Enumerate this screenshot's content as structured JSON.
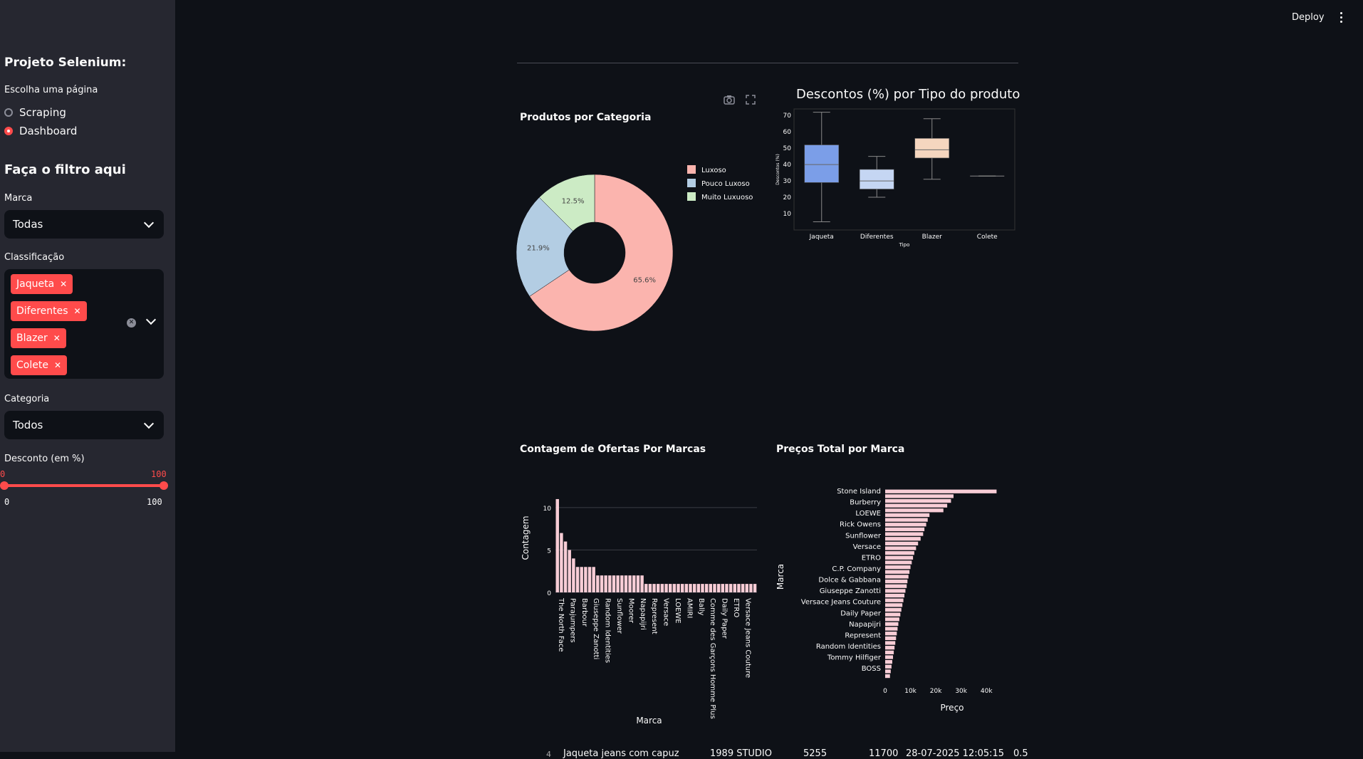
{
  "topbar": {
    "deploy_label": "Deploy"
  },
  "sidebar": {
    "title": "Projeto Selenium:",
    "page_label": "Escolha uma página",
    "pages": [
      {
        "label": "Scraping",
        "selected": false
      },
      {
        "label": "Dashboard",
        "selected": true
      }
    ],
    "filter_title": "Faça o filtro aqui",
    "marca": {
      "label": "Marca",
      "value": "Todas"
    },
    "classificacao": {
      "label": "Classificação",
      "tags": [
        "Jaqueta",
        "Diferentes",
        "Blazer",
        "Colete"
      ]
    },
    "categoria": {
      "label": "Categoria",
      "value": "Todos"
    },
    "desconto": {
      "label": "Desconto (em %)",
      "min_value": "0",
      "max_value": "100",
      "range_min": "0",
      "range_max": "100"
    }
  },
  "charts": {
    "pie_title": "Produtos por Categoria",
    "box_title": "Descontos (%) por Tipo do produto",
    "count_title": "Contagem de Ofertas Por Marcas",
    "price_title": "Preços Total por Marca"
  },
  "chart_data": [
    {
      "type": "pie",
      "title": "Produtos por Categoria",
      "hole": true,
      "slices": [
        {
          "label": "Luxoso",
          "value": 65.6,
          "text": "65.6%",
          "color": "#fbb4ae"
        },
        {
          "label": "Pouco Luxoso",
          "value": 21.9,
          "text": "21.9%",
          "color": "#b3cde3"
        },
        {
          "label": "Muito Luxuoso",
          "value": 12.5,
          "text": "12.5%",
          "color": "#ccebc5"
        }
      ],
      "legend_position": "top-right"
    },
    {
      "type": "box",
      "title": "Descontos (%) por Tipo do produto",
      "xlabel": "Tipo",
      "ylabel": "Descontos (%)",
      "yticks": [
        10,
        20,
        30,
        40,
        50,
        60,
        70
      ],
      "ylim": [
        0,
        74
      ],
      "boxes": [
        {
          "category": "Jaqueta",
          "min": 5,
          "q1": 29,
          "median": 40,
          "q3": 52,
          "max": 72,
          "color": "#7b9ee8"
        },
        {
          "category": "Diferentes",
          "min": 20,
          "q1": 25,
          "median": 30,
          "q3": 37,
          "max": 45,
          "color": "#c5d6f3"
        },
        {
          "category": "Blazer",
          "min": 31,
          "q1": 44,
          "median": 49,
          "q3": 56,
          "max": 68,
          "color": "#f5d6bf"
        },
        {
          "category": "Colete",
          "min": 33,
          "q1": 33,
          "median": 33,
          "q3": 33,
          "max": 33,
          "color": "#e8e8e8"
        }
      ]
    },
    {
      "type": "bar",
      "title": "Contagem de Ofertas Por Marcas",
      "xlabel": "Marca",
      "ylabel": "Contagem",
      "yticks": [
        0,
        5,
        10
      ],
      "ylim": [
        0,
        11.5
      ],
      "values": [
        11,
        7,
        6,
        5,
        4,
        3,
        3,
        3,
        3,
        3,
        2,
        2,
        2,
        2,
        2,
        2,
        2,
        2,
        2,
        2,
        2,
        2,
        1,
        1,
        1,
        1,
        1,
        1,
        1,
        1,
        1,
        1,
        1,
        1,
        1,
        1,
        1,
        1,
        1,
        1,
        1,
        1,
        1,
        1,
        1,
        1,
        1,
        1,
        1,
        1
      ],
      "tick_labels": [
        "The North Face",
        "Parajumpers",
        "Barbour",
        "Giuseppe Zanotti",
        "Random Identities",
        "Sunflower",
        "Moorer",
        "Napapijri",
        "Represent",
        "Versace",
        "LOEWE",
        "AMIRI",
        "Bally",
        "Comme des Garçons Homme Plus",
        "Daily Paper",
        "ETRO",
        "Versace Jeans Couture"
      ],
      "color": "#f8cdd6"
    },
    {
      "type": "bar",
      "orientation": "horizontal",
      "title": "Preços Total por Marca",
      "xlabel": "Preço",
      "ylabel": "Marca",
      "xticks": [
        "0",
        "10k",
        "20k",
        "30k",
        "40k"
      ],
      "xlim": [
        0,
        45000
      ],
      "values": [
        44000,
        27000,
        26000,
        24500,
        23000,
        17500,
        16800,
        16200,
        15500,
        15000,
        14000,
        13000,
        12200,
        11500,
        11000,
        10500,
        10000,
        9600,
        9200,
        8800,
        8500,
        8000,
        7600,
        7200,
        6800,
        6400,
        6000,
        5600,
        5200,
        4900,
        4600,
        4300,
        4000,
        3700,
        3400,
        3100,
        2800,
        2500,
        2200,
        1900
      ],
      "tick_labels": [
        "Stone Island",
        "Burberry",
        "LOEWE",
        "Rick Owens",
        "Sunflower",
        "Versace",
        "ETRO",
        "C.P. Company",
        "Dolce & Gabbana",
        "Giuseppe Zanotti",
        "Versace Jeans Couture",
        "Daily Paper",
        "Napapijri",
        "Represent",
        "Random Identities",
        "Tommy Hilfiger",
        "BOSS"
      ],
      "color": "#f8cdd6"
    }
  ],
  "table_peek": {
    "index": "4",
    "product": "Jaqueta jeans com capuz",
    "brand": "1989 STUDIO",
    "col3": "5255",
    "col4": "11700",
    "date": "28-07-2025 12:05:15",
    "col6": "0.5"
  }
}
